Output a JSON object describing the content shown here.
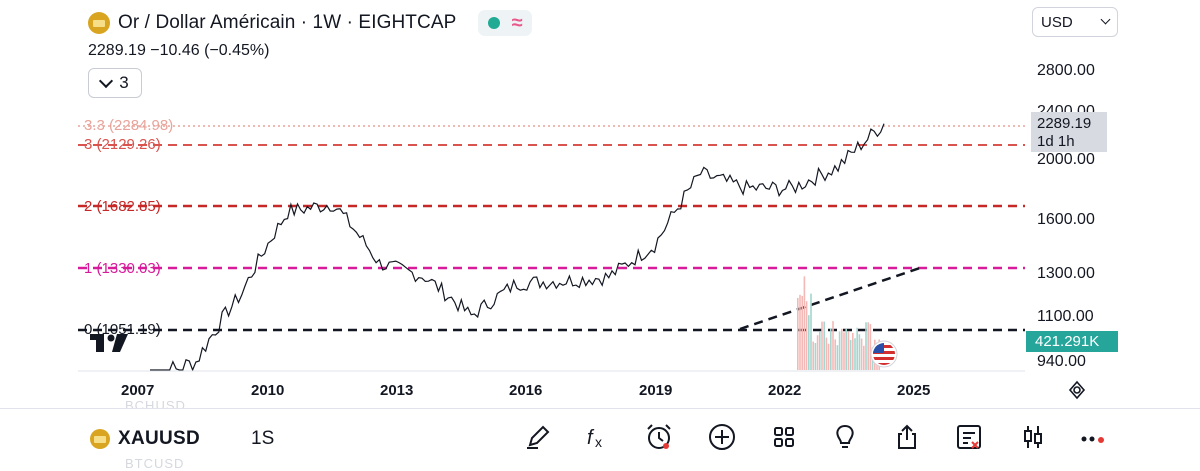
{
  "header": {
    "title": "Or / Dollar Américain · 1W · EIGHTCAP",
    "price_line": "2289.19  −10.46 (−0.45%)",
    "indicators_count": "3",
    "currency": "USD"
  },
  "colors": {
    "accent_green": "#22ab94",
    "fib_red": "#d32f2f",
    "fib_magenta": "#d81b9a",
    "gold": "#d9a521"
  },
  "price_axis": {
    "labels": [
      "2800.00",
      "2400.00",
      "2000.00",
      "1600.00",
      "1300.00",
      "1100.00",
      "940.00"
    ],
    "last_price": "2289.19",
    "countdown": "1d 1h",
    "volume": "421.291K"
  },
  "fib_levels": [
    {
      "label": "3.3 (2284.98)",
      "color": "#e8a49b"
    },
    {
      "label": "3 (2129.26)",
      "color": "#d9534f"
    },
    {
      "label": "2 (1682.85)",
      "color": "#c62828"
    },
    {
      "label": "1 (1330.03)",
      "color": "#d81b9a"
    },
    {
      "label": "0 (1051.19)",
      "color": "#131722"
    }
  ],
  "time_axis": [
    "2007",
    "2010",
    "2013",
    "2016",
    "2019",
    "2022",
    "2025"
  ],
  "chart_data": {
    "type": "line",
    "x": [
      "2008",
      "2009",
      "2010",
      "2011",
      "2012",
      "2013",
      "2014",
      "2015",
      "2016",
      "2017",
      "2018",
      "2019",
      "2020",
      "2021",
      "2022",
      "2023",
      "2024"
    ],
    "values": [
      900,
      940,
      1200,
      1650,
      1700,
      1350,
      1280,
      1100,
      1250,
      1260,
      1280,
      1450,
      1900,
      1800,
      1800,
      1950,
      2289
    ],
    "ylim": [
      900,
      2800
    ],
    "grid": false
  },
  "bottom_bar": {
    "ticker": "XAUUSD",
    "timeframe": "1S",
    "faded_above": "BCHUSD",
    "faded_below": "BTCUSD"
  }
}
